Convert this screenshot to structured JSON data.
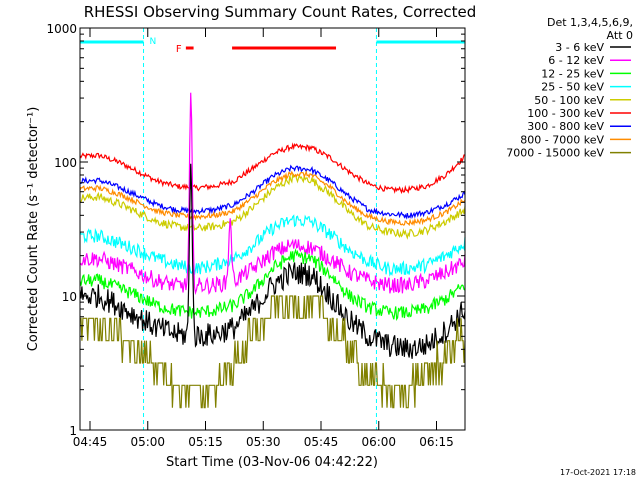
{
  "chart_data": {
    "type": "line",
    "title": "RHESSI Observing Summary Count Rates, Corrected",
    "xlabel": "Start Time (03-Nov-06 04:42:22)",
    "ylabel": "Corrected Count Rate (s⁻¹ detector⁻¹)",
    "y_scale": "log",
    "ylim": [
      1,
      1000
    ],
    "xlim_minutes_after_start": [
      0,
      100
    ],
    "x_ticks": [
      {
        "label": "04:45",
        "min": 2.6
      },
      {
        "label": "05:00",
        "min": 17.6
      },
      {
        "label": "05:15",
        "min": 32.6
      },
      {
        "label": "05:30",
        "min": 47.6
      },
      {
        "label": "05:45",
        "min": 62.6
      },
      {
        "label": "06:00",
        "min": 77.6
      },
      {
        "label": "06:15",
        "min": 92.6
      }
    ],
    "y_ticks": [
      {
        "label": "1",
        "value": 1
      },
      {
        "label": "10",
        "value": 10
      },
      {
        "label": "100",
        "value": 100
      },
      {
        "label": "1000",
        "value": 1000
      }
    ],
    "legend": {
      "placement": "right",
      "header_line1": "Det 1,3,4,5,6,9,",
      "header_line2": "Att 0",
      "entries": [
        {
          "label": "3 - 6 keV",
          "color": "#000000"
        },
        {
          "label": "6 - 12 keV",
          "color": "#ff00ff"
        },
        {
          "label": "12 - 25 keV",
          "color": "#00ff00"
        },
        {
          "label": "25 - 50 keV",
          "color": "#00ffff"
        },
        {
          "label": "50 - 100 keV",
          "color": "#cccc00"
        },
        {
          "label": "100 - 300 keV",
          "color": "#ff0000"
        },
        {
          "label": "300 - 800 keV",
          "color": "#0000ff"
        },
        {
          "label": "800 - 7000 keV",
          "color": "#ff8c00"
        },
        {
          "label": "7000 - 15000 keV",
          "color": "#808000"
        }
      ]
    },
    "annotations": {
      "night_label": "N",
      "flare_label": "F",
      "night_color": "#00ffff",
      "flare_color": "#ff0000",
      "night_intervals_min": [
        [
          0,
          16.5
        ],
        [
          77,
          100
        ]
      ],
      "flare_intervals_min": [
        [
          27.5,
          29.5
        ],
        [
          39.5,
          66.5
        ]
      ],
      "spikes": [
        {
          "series": "6 - 12 keV",
          "min": 28.8,
          "value": 340
        },
        {
          "series": "3 - 6 keV",
          "min": 28.8,
          "value": 100
        },
        {
          "series": "6 - 12 keV",
          "min": 39.0,
          "value": 38
        }
      ]
    },
    "series": [
      {
        "name": "100 - 300 keV",
        "color": "#ff0000",
        "x": [
          0,
          5,
          10,
          15,
          20,
          25,
          30,
          35,
          40,
          45,
          50,
          55,
          60,
          65,
          70,
          75,
          80,
          85,
          90,
          95,
          100
        ],
        "y": [
          110,
          112,
          100,
          85,
          72,
          66,
          64,
          66,
          72,
          90,
          115,
          130,
          128,
          108,
          84,
          68,
          62,
          62,
          66,
          80,
          110
        ]
      },
      {
        "name": "300 - 800 keV",
        "color": "#0000ff",
        "x": [
          0,
          5,
          10,
          15,
          20,
          25,
          30,
          35,
          40,
          45,
          50,
          55,
          60,
          65,
          70,
          75,
          80,
          85,
          90,
          95,
          100
        ],
        "y": [
          72,
          73,
          65,
          56,
          48,
          44,
          43,
          44,
          48,
          60,
          78,
          90,
          88,
          72,
          55,
          44,
          41,
          40,
          42,
          48,
          58
        ]
      },
      {
        "name": "50 - 100 keV",
        "color": "#cccc00",
        "x": [
          0,
          5,
          10,
          15,
          20,
          25,
          30,
          35,
          40,
          45,
          50,
          55,
          60,
          65,
          70,
          75,
          80,
          85,
          90,
          95,
          100
        ],
        "y": [
          54,
          55,
          49,
          42,
          36,
          33,
          32,
          33,
          36,
          46,
          62,
          76,
          74,
          58,
          42,
          33,
          30,
          29,
          31,
          36,
          44
        ]
      },
      {
        "name": "800 - 7000 keV",
        "color": "#ff8c00",
        "x": [
          0,
          5,
          10,
          15,
          20,
          25,
          30,
          35,
          40,
          45,
          50,
          55,
          60,
          65,
          70,
          75,
          80,
          85,
          90,
          95,
          100
        ],
        "y": [
          63,
          64,
          58,
          50,
          43,
          40,
          39,
          40,
          43,
          54,
          70,
          82,
          80,
          65,
          48,
          39,
          36,
          35,
          37,
          42,
          52
        ]
      },
      {
        "name": "25 - 50 keV",
        "color": "#00ffff",
        "x": [
          0,
          5,
          10,
          15,
          20,
          25,
          30,
          35,
          40,
          45,
          50,
          55,
          60,
          65,
          70,
          75,
          80,
          85,
          90,
          95,
          100
        ],
        "y": [
          28,
          28,
          25,
          22,
          19,
          17,
          16,
          17,
          19,
          24,
          32,
          37,
          36,
          29,
          22,
          18,
          16,
          16,
          17,
          20,
          25
        ]
      },
      {
        "name": "6 - 12 keV",
        "color": "#ff00ff",
        "x": [
          0,
          5,
          10,
          15,
          20,
          25,
          30,
          35,
          40,
          45,
          50,
          55,
          60,
          65,
          70,
          75,
          80,
          85,
          90,
          95,
          100
        ],
        "y": [
          19,
          19,
          17,
          15,
          13,
          12,
          12,
          12,
          13,
          16,
          21,
          24,
          23,
          19,
          15,
          13,
          12,
          12,
          13,
          15,
          18
        ]
      },
      {
        "name": "12 - 25 keV",
        "color": "#00ff00",
        "x": [
          0,
          5,
          10,
          15,
          20,
          25,
          30,
          35,
          40,
          45,
          50,
          55,
          60,
          65,
          70,
          75,
          80,
          85,
          90,
          95,
          100
        ],
        "y": [
          13,
          13,
          11.5,
          10,
          8.5,
          7.8,
          7.5,
          7.8,
          8.5,
          11,
          16,
          20,
          19,
          14.5,
          10,
          8.2,
          7.5,
          7.5,
          8,
          9.5,
          12
        ]
      },
      {
        "name": "3 - 6 keV",
        "color": "#000000",
        "x": [
          0,
          5,
          10,
          15,
          20,
          25,
          30,
          35,
          40,
          45,
          50,
          55,
          60,
          65,
          70,
          75,
          80,
          85,
          90,
          95,
          100
        ],
        "y": [
          10,
          10,
          8.5,
          7,
          5.8,
          5.2,
          5,
          5.2,
          5.8,
          8,
          12,
          15,
          14.5,
          10,
          6.5,
          5,
          4.3,
          4,
          4.3,
          5.5,
          8
        ]
      },
      {
        "name": "7000 - 15000 keV",
        "color": "#808000",
        "x": [
          0,
          5,
          10,
          15,
          20,
          25,
          30,
          35,
          40,
          45,
          50,
          55,
          60,
          65,
          70,
          75,
          80,
          85,
          90,
          95,
          100
        ],
        "y": [
          6,
          6,
          5,
          4,
          3,
          2,
          2,
          2,
          3,
          5,
          8,
          9,
          9,
          6,
          4,
          2.5,
          2,
          2,
          2.5,
          3.5,
          5
        ]
      }
    ]
  },
  "timestamp": "17-Oct-2021 17:18"
}
